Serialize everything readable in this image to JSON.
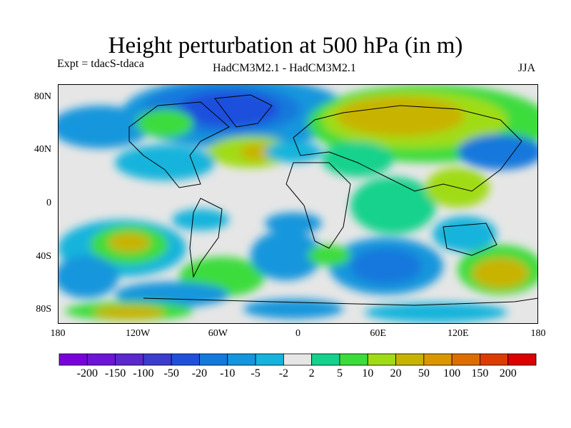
{
  "title": "Height perturbation at 500 hPa (in m)",
  "experiment_label": "Expt = tdacS-tdaca",
  "model_label": "HadCM3M2.1 - HadCM3M2.1",
  "season_label": "JJA",
  "y_axis": {
    "ticks": [
      {
        "label": "80N",
        "lat": 80
      },
      {
        "label": "40N",
        "lat": 40
      },
      {
        "label": "0",
        "lat": 0
      },
      {
        "label": "40S",
        "lat": -40
      },
      {
        "label": "80S",
        "lat": -80
      }
    ],
    "range": [
      -90,
      90
    ]
  },
  "x_axis": {
    "ticks": [
      {
        "label": "180",
        "lon": -180
      },
      {
        "label": "120W",
        "lon": -120
      },
      {
        "label": "60W",
        "lon": -60
      },
      {
        "label": "0",
        "lon": 0
      },
      {
        "label": "60E",
        "lon": 60
      },
      {
        "label": "120E",
        "lon": 120
      },
      {
        "label": "180",
        "lon": 180
      }
    ],
    "range": [
      -180,
      180
    ]
  },
  "colorbar": {
    "colors": [
      "#7a00dc",
      "#6e14d8",
      "#5a28cd",
      "#3c3ccd",
      "#1e50dc",
      "#1478dc",
      "#1496dc",
      "#14b4dc",
      "#e6e6e6",
      "#14d28c",
      "#3cdc3c",
      "#a0dc14",
      "#c8b400",
      "#dc9600",
      "#dc6e00",
      "#dc3c00",
      "#dc0000"
    ],
    "levels": [
      "-200",
      "-150",
      "-100",
      "-50",
      "-20",
      "-10",
      "-5",
      "-2",
      "2",
      "5",
      "10",
      "20",
      "50",
      "100",
      "150",
      "200"
    ]
  }
}
